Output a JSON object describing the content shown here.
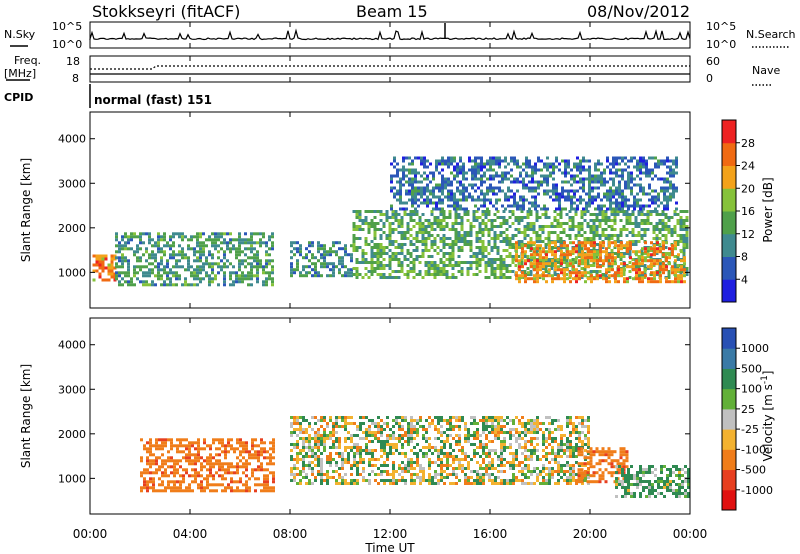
{
  "header": {
    "title": "Stokkseyri (fitACF)",
    "beam": "Beam 15",
    "date": "08/Nov/2012"
  },
  "summary_panels": {
    "nsky": {
      "label": "N.Sky",
      "tick_top": "10^5",
      "tick_bottom": "10^0"
    },
    "nsearch": {
      "label": "N.Search",
      "tick_top": "10^5",
      "tick_bottom": "10^0"
    },
    "freq": {
      "label_line1": "Freq.",
      "label_line2": "[MHz]",
      "ticks": [
        "18",
        "8"
      ]
    },
    "nave": {
      "label": "Nave",
      "ticks": [
        "60",
        "0"
      ]
    },
    "cpid": {
      "label": "CPID",
      "value": "normal (fast) 151"
    }
  },
  "colors": {
    "power_scale": [
      "#1f1fe0",
      "#2b57b8",
      "#3f8a8f",
      "#4fa04a",
      "#86c23a",
      "#f3a21a",
      "#f06a12",
      "#ee2222"
    ],
    "velocity_scale": [
      "#2850b4",
      "#3a7aa6",
      "#2f8a52",
      "#62b038",
      "#c0c0c0",
      "#f3b230",
      "#f07d1a",
      "#e73f1f",
      "#e01010"
    ]
  },
  "chart_data": [
    {
      "type": "heatmap",
      "name": "power",
      "ylabel": "Slant Range [km]",
      "xlabel": "Time UT",
      "x_ticks": [
        "00:00",
        "04:00",
        "08:00",
        "12:00",
        "16:00",
        "20:00",
        "00:00"
      ],
      "x_range_hours": [
        0,
        24
      ],
      "y_ticks": [
        1000,
        2000,
        3000,
        4000
      ],
      "y_range_km": [
        200,
        4600
      ],
      "colorbar": {
        "label": "Power [dB]",
        "ticks": [
          "4",
          "8",
          "12",
          "16",
          "20",
          "24",
          "28"
        ],
        "range": [
          0,
          32
        ]
      },
      "features": [
        {
          "t": [
            0.1,
            1.0
          ],
          "range_km": [
            800,
            1400
          ],
          "level_db": 24
        },
        {
          "t": [
            1.0,
            7.3
          ],
          "range_km": [
            700,
            1900
          ],
          "level_db": 12
        },
        {
          "t": [
            8.0,
            10.5
          ],
          "range_km": [
            900,
            1700
          ],
          "level_db": 10
        },
        {
          "t": [
            10.5,
            23.9
          ],
          "range_km": [
            900,
            2400
          ],
          "level_db": 14
        },
        {
          "t": [
            17.0,
            23.8
          ],
          "range_km": [
            800,
            1700
          ],
          "level_db": 24
        },
        {
          "t": [
            12.0,
            23.5
          ],
          "range_km": [
            2400,
            3600
          ],
          "level_db": 8
        }
      ]
    },
    {
      "type": "heatmap",
      "name": "velocity",
      "ylabel": "Slant Range [km]",
      "xlabel": "Time UT",
      "x_ticks": [
        "00:00",
        "04:00",
        "08:00",
        "12:00",
        "16:00",
        "20:00",
        "00:00"
      ],
      "x_range_hours": [
        0,
        24
      ],
      "y_ticks": [
        1000,
        2000,
        3000,
        4000
      ],
      "y_range_km": [
        200,
        4600
      ],
      "colorbar": {
        "label": "Velocity [m s^-1]",
        "ticks": [
          "1000",
          "500",
          "100",
          "25",
          "-25",
          "-100",
          "-500",
          "-1000"
        ]
      },
      "features": [
        {
          "t": [
            2.0,
            7.3
          ],
          "range_km": [
            700,
            1900
          ],
          "velocity_ms": -300
        },
        {
          "t": [
            8.0,
            20.0
          ],
          "range_km": [
            900,
            2400
          ],
          "velocity_ms": 0
        },
        {
          "t": [
            19.5,
            21.5
          ],
          "range_km": [
            900,
            1700
          ],
          "velocity_ms": -300
        },
        {
          "t": [
            21.0,
            24.0
          ],
          "range_km": [
            600,
            1300
          ],
          "velocity_ms": 100
        }
      ]
    }
  ]
}
